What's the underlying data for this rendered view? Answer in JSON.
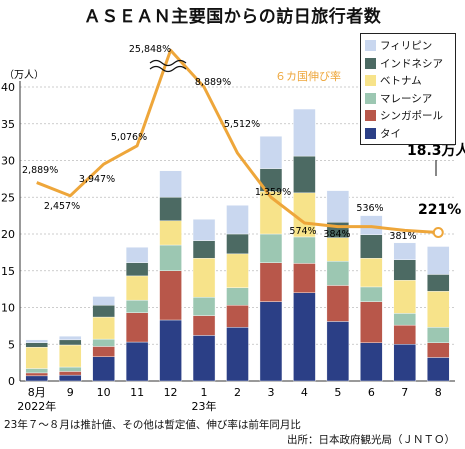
{
  "chart_data": {
    "type": "bar",
    "stacked": true,
    "title": "ＡＳＥＡＮ主要国からの訪日旅行者数",
    "ylabel": "（万人）",
    "ylim": [
      0,
      40
    ],
    "yticks": [
      "0",
      "5",
      "10",
      "15",
      "20",
      "25",
      "30",
      "35",
      "40"
    ],
    "categories": [
      "8月",
      "9",
      "10",
      "11",
      "12",
      "1",
      "2",
      "3",
      "4",
      "5",
      "6",
      "7",
      "8"
    ],
    "year_labels": [
      {
        "index": 0,
        "label": "2022年"
      },
      {
        "index": 5,
        "label": "23年"
      }
    ],
    "legend_placement": "top-right",
    "series": [
      {
        "name": "タイ",
        "color": "#2b3f86",
        "values": [
          0.7,
          0.8,
          3.3,
          5.3,
          8.3,
          6.2,
          7.3,
          10.8,
          12.0,
          8.1,
          5.2,
          5.0,
          3.2
        ]
      },
      {
        "name": "シンガポール",
        "color": "#b8574a",
        "values": [
          0.4,
          0.5,
          1.4,
          4.0,
          6.7,
          2.7,
          3.0,
          5.3,
          4.0,
          4.9,
          5.6,
          2.6,
          2.0
        ]
      },
      {
        "name": "マレーシア",
        "color": "#9cc7b2",
        "values": [
          0.6,
          0.6,
          1.0,
          1.7,
          3.5,
          2.5,
          2.4,
          3.9,
          3.6,
          3.3,
          2.0,
          1.6,
          2.1
        ]
      },
      {
        "name": "ベトナム",
        "color": "#f7e38a",
        "values": [
          2.9,
          3.0,
          3.0,
          3.3,
          3.3,
          5.3,
          4.6,
          5.8,
          6.0,
          3.2,
          3.9,
          4.5,
          4.9
        ]
      },
      {
        "name": "インドネシア",
        "color": "#4c6a63",
        "values": [
          0.6,
          0.7,
          1.6,
          1.8,
          3.2,
          2.4,
          2.7,
          3.1,
          5.0,
          2.1,
          3.2,
          2.8,
          2.3
        ]
      },
      {
        "name": "フィリピン",
        "color": "#c9d7ef",
        "values": [
          0.4,
          0.5,
          1.2,
          2.1,
          3.6,
          2.9,
          3.9,
          4.4,
          6.4,
          4.3,
          2.6,
          2.3,
          3.8
        ]
      }
    ],
    "growth_line": {
      "name": "６カ国伸び率",
      "color": "#eea63a",
      "y_positions": [
        27,
        25.2,
        29.5,
        32,
        45,
        40,
        31,
        25,
        21.5,
        21,
        21,
        20.5,
        20.2
      ],
      "labels": [
        "2,889%",
        "2,457%",
        "3,947%",
        "5,076%",
        "25,848%",
        "8,889%",
        "5,512%",
        "1,359%",
        "574%",
        "384%",
        "536%",
        "381%",
        "221%"
      ]
    },
    "annotations": {
      "last_total": "18.3万人",
      "last_rate": "221%"
    }
  },
  "note": "23年７～８月は推計値、その他は暫定値、伸び率は前年同月比",
  "source": "出所：日本政府観光局（ＪＮＴＯ）"
}
